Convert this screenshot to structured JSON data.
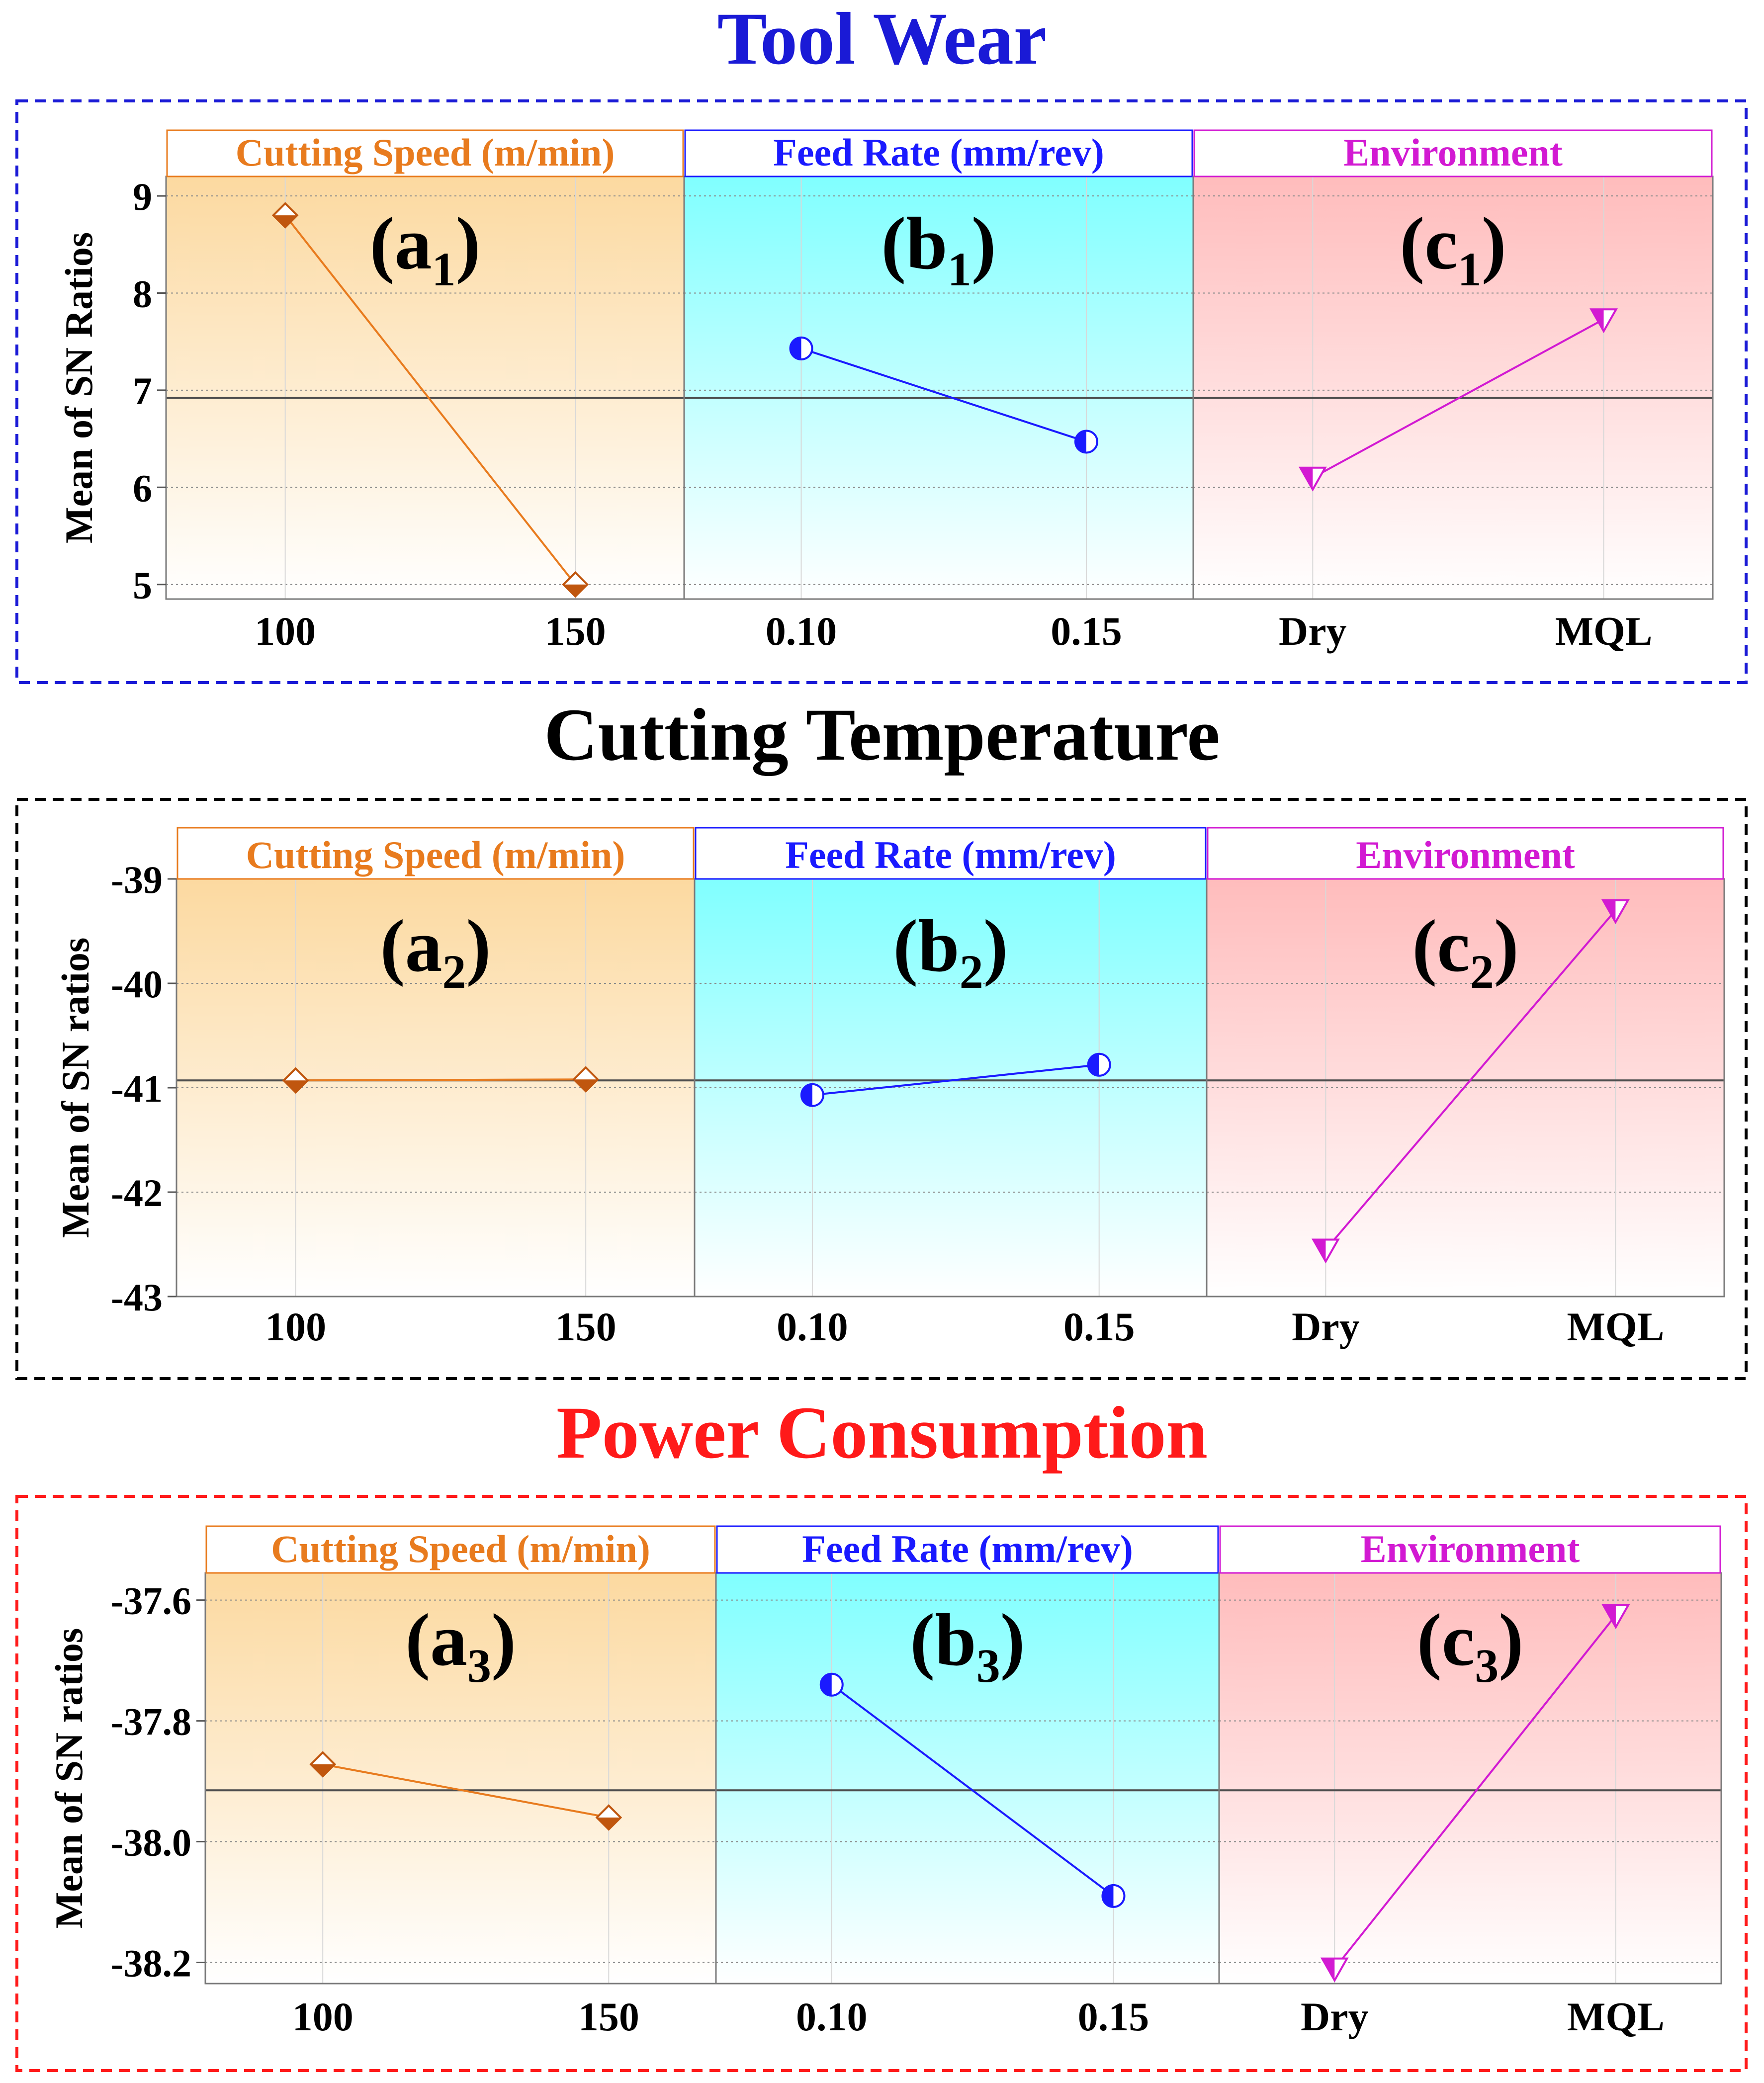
{
  "colors": {
    "speed": "#e87b1e",
    "speed_marker": "#c0560e",
    "feed": "#1a1aff",
    "env": "#d21ad2",
    "tool_wear_title": "#1a1ad6",
    "cutting_temperature_title": "#000000",
    "power_consumption_title": "#ff1a1a",
    "speed_bg_top": "#fcd9a0",
    "feed_bg_top": "#80ffff",
    "env_bg_top": "#ffbcbc",
    "mean_line": "#4d4d4d"
  },
  "icons": {
    "speed_marker": "half-filled-diamond-icon",
    "feed_marker": "half-filled-circle-icon",
    "env_marker": "half-filled-triangle-down-icon"
  },
  "chart_data": [
    {
      "id": "tool_wear",
      "type": "line",
      "title": "Tool Wear",
      "ylabel": "Mean of SN Ratios",
      "ylim": [
        4.85,
        9.2
      ],
      "yticks": [
        "9",
        "8",
        "7",
        "6",
        "5"
      ],
      "ytick_values": [
        9,
        8,
        7,
        6,
        5
      ],
      "grand_mean": 6.92,
      "panels": [
        {
          "key": "speed",
          "header": "Cutting Speed (m/min)",
          "label_main": "(a",
          "label_sub": "1",
          "label_close": ")",
          "categories": [
            "100",
            "150"
          ],
          "values": [
            8.8,
            5.0
          ]
        },
        {
          "key": "feed",
          "header": "Feed Rate (mm/rev)",
          "label_main": "(b",
          "label_sub": "1",
          "label_close": ")",
          "categories": [
            "0.10",
            "0.15"
          ],
          "values": [
            7.43,
            6.47
          ]
        },
        {
          "key": "env",
          "header": "Environment",
          "label_main": "(c",
          "label_sub": "1",
          "label_close": ")",
          "categories": [
            "Dry",
            "MQL"
          ],
          "values": [
            6.1,
            7.73
          ]
        }
      ]
    },
    {
      "id": "cutting_temperature",
      "type": "line",
      "title": "Cutting Temperature",
      "ylabel": "Mean of SN ratios",
      "ylim": [
        -43.0,
        -39.0
      ],
      "yticks": [
        "-39",
        "-40",
        "-41",
        "-42",
        "-43"
      ],
      "ytick_values": [
        -39,
        -40,
        -41,
        -42,
        -43
      ],
      "grand_mean": -40.93,
      "panels": [
        {
          "key": "speed",
          "header": "Cutting Speed (m/min)",
          "label_main": "(a",
          "label_sub": "2",
          "label_close": ")",
          "categories": [
            "100",
            "150"
          ],
          "values": [
            -40.93,
            -40.92
          ]
        },
        {
          "key": "feed",
          "header": "Feed Rate (mm/rev)",
          "label_main": "(b",
          "label_sub": "2",
          "label_close": ")",
          "categories": [
            "0.10",
            "0.15"
          ],
          "values": [
            -41.07,
            -40.78
          ]
        },
        {
          "key": "env",
          "header": "Environment",
          "label_main": "(c",
          "label_sub": "2",
          "label_close": ")",
          "categories": [
            "Dry",
            "MQL"
          ],
          "values": [
            -42.55,
            -39.3
          ]
        }
      ]
    },
    {
      "id": "power_consumption",
      "type": "line",
      "title": "Power Consumption",
      "ylabel": "Mean of SN ratios",
      "ylim": [
        -38.235,
        -37.555
      ],
      "yticks": [
        "-37.6",
        "-37.8",
        "-38.0",
        "-38.2"
      ],
      "ytick_values": [
        -37.6,
        -37.8,
        -38.0,
        -38.2
      ],
      "grand_mean": -37.915,
      "panels": [
        {
          "key": "speed",
          "header": "Cutting Speed (m/min)",
          "label_main": "(a",
          "label_sub": "3",
          "label_close": ")",
          "categories": [
            "100",
            "150"
          ],
          "values": [
            -37.872,
            -37.96
          ]
        },
        {
          "key": "feed",
          "header": "Feed Rate (mm/rev)",
          "label_main": "(b",
          "label_sub": "3",
          "label_close": ")",
          "categories": [
            "0.10",
            "0.15"
          ],
          "values": [
            -37.74,
            -38.09
          ]
        },
        {
          "key": "env",
          "header": "Environment",
          "label_main": "(c",
          "label_sub": "3",
          "label_close": ")",
          "categories": [
            "Dry",
            "MQL"
          ],
          "values": [
            -38.21,
            -37.625
          ]
        }
      ]
    }
  ]
}
